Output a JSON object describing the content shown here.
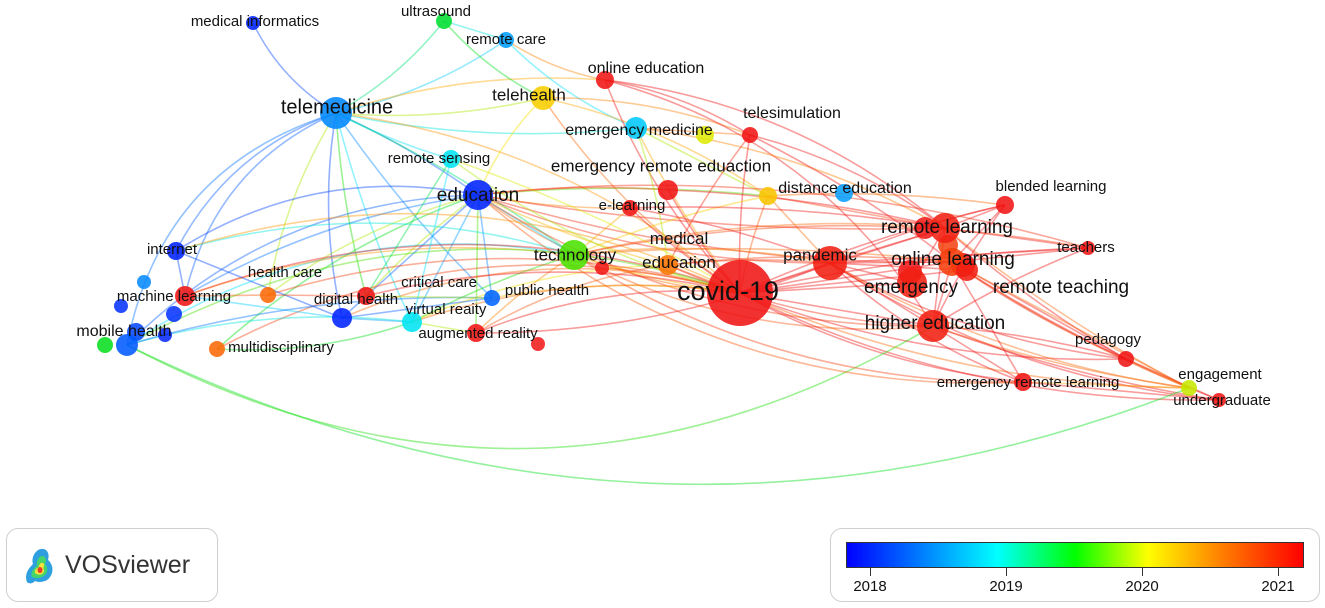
{
  "map": {
    "nodes": [
      {
        "id": "covid-19",
        "label": "covid-19",
        "year": 2021.0
      },
      {
        "id": "telemedicine",
        "label": "telemedicine",
        "year": 2018.5
      },
      {
        "id": "education",
        "label": "education",
        "year": 2018.05
      },
      {
        "id": "technology",
        "label": "technology",
        "year": 2019.6
      },
      {
        "id": "medical-education",
        "label": "medical education",
        "year": 2020.55
      },
      {
        "id": "pandemic",
        "label": "pandemic",
        "year": 2020.95
      },
      {
        "id": "emergency",
        "label": "emergency",
        "year": 2020.95
      },
      {
        "id": "remote-learning",
        "label": "remote learning",
        "year": 2020.95
      },
      {
        "id": "online-learning",
        "label": "online learning",
        "year": 2020.8
      },
      {
        "id": "remote-teaching",
        "label": "remote teaching",
        "year": 2020.95
      },
      {
        "id": "higher-education",
        "label": "higher education",
        "year": 2020.95
      },
      {
        "id": "telehealth",
        "label": "telehealth",
        "year": 2020.1
      },
      {
        "id": "emergency-medicine",
        "label": "emergency medicine",
        "year": 2018.8
      },
      {
        "id": "telesimulation",
        "label": "telesimulation",
        "year": 2021.0
      },
      {
        "id": "emergency-remote-eduaction",
        "label": "emergency remote eduaction",
        "year": 2021.0
      },
      {
        "id": "distance-education",
        "label": "distance education",
        "year": 2020.15
      },
      {
        "id": "blended-learning",
        "label": "blended learning",
        "year": 2021.0
      },
      {
        "id": "teachers",
        "label": "teachers",
        "year": 2021.0
      },
      {
        "id": "e-learning",
        "label": "e-learning",
        "year": 2021.0
      },
      {
        "id": "online-education",
        "label": "online education",
        "year": 2021.0
      },
      {
        "id": "remote-care",
        "label": "remote care",
        "year": 2018.6
      },
      {
        "id": "ultrasound",
        "label": "ultrasound",
        "year": 2019.35
      },
      {
        "id": "medical-informatics",
        "label": "medical informatics",
        "year": 2018.05
      },
      {
        "id": "remote-sensing",
        "label": "remote sensing",
        "year": 2018.95
      },
      {
        "id": "internet",
        "label": "internet",
        "year": 2018.05
      },
      {
        "id": "health-care",
        "label": "health care",
        "year": 2020.6
      },
      {
        "id": "machine-learning",
        "label": "machine learning",
        "year": 2021.0
      },
      {
        "id": "critical-care",
        "label": "critical care",
        "year": 2021.0
      },
      {
        "id": "public-health",
        "label": "public health",
        "year": 2018.35
      },
      {
        "id": "digital-health",
        "label": "digital health",
        "year": 2018.05
      },
      {
        "id": "virtual-reality",
        "label": "virtual reaity",
        "year": 2018.95
      },
      {
        "id": "augmented-reality",
        "label": "augmented reality",
        "year": 2021.0
      },
      {
        "id": "mobile-health",
        "label": "mobile health",
        "year": 2018.3
      },
      {
        "id": "multidisciplinary",
        "label": "multidisciplinary",
        "year": 2020.6
      },
      {
        "id": "pedagogy",
        "label": "pedagogy",
        "year": 2021.0
      },
      {
        "id": "emergency-remote-learning",
        "label": "emergency remote learning",
        "year": 2021.0
      },
      {
        "id": "engagement",
        "label": "engagement",
        "year": 2019.85
      },
      {
        "id": "undergraduate",
        "label": "undergraduate",
        "year": 2021.0
      }
    ]
  },
  "legend": {
    "ticks": [
      "2018",
      "2019",
      "2020",
      "2021"
    ]
  },
  "branding": {
    "name": "VOSviewer"
  }
}
